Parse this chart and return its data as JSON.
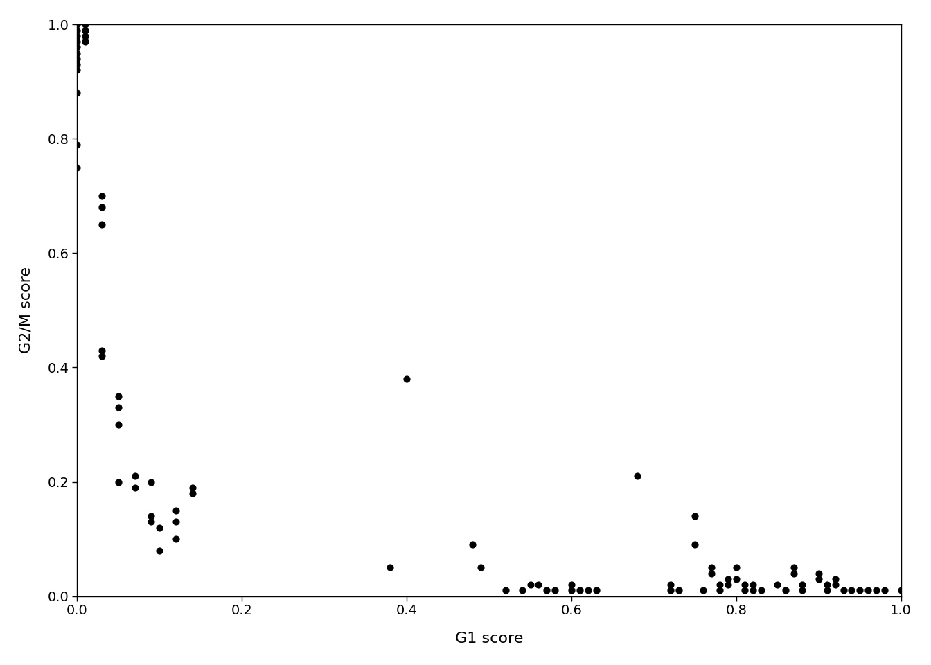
{
  "x": [
    0.0,
    0.0,
    0.0,
    0.0,
    0.0,
    0.0,
    0.0,
    0.0,
    0.0,
    0.0,
    0.0,
    0.0,
    0.01,
    0.01,
    0.01,
    0.01,
    0.03,
    0.03,
    0.03,
    0.03,
    0.03,
    0.05,
    0.05,
    0.05,
    0.05,
    0.07,
    0.07,
    0.09,
    0.09,
    0.09,
    0.1,
    0.1,
    0.12,
    0.12,
    0.12,
    0.14,
    0.14,
    0.38,
    0.4,
    0.48,
    0.49,
    0.52,
    0.54,
    0.55,
    0.56,
    0.57,
    0.58,
    0.6,
    0.6,
    0.61,
    0.62,
    0.63,
    0.68,
    0.72,
    0.72,
    0.73,
    0.75,
    0.75,
    0.76,
    0.77,
    0.77,
    0.78,
    0.78,
    0.79,
    0.79,
    0.8,
    0.8,
    0.81,
    0.81,
    0.82,
    0.82,
    0.83,
    0.85,
    0.86,
    0.87,
    0.87,
    0.88,
    0.88,
    0.9,
    0.9,
    0.91,
    0.91,
    0.92,
    0.92,
    0.93,
    0.94,
    0.95,
    0.96,
    0.97,
    0.98,
    1.0
  ],
  "y": [
    1.0,
    0.99,
    0.98,
    0.97,
    0.96,
    0.95,
    0.94,
    0.93,
    0.92,
    0.88,
    0.79,
    0.75,
    1.0,
    0.99,
    0.98,
    0.97,
    0.7,
    0.68,
    0.65,
    0.43,
    0.42,
    0.35,
    0.33,
    0.3,
    0.2,
    0.21,
    0.19,
    0.2,
    0.14,
    0.13,
    0.12,
    0.08,
    0.15,
    0.13,
    0.1,
    0.19,
    0.18,
    0.05,
    0.38,
    0.09,
    0.05,
    0.01,
    0.01,
    0.02,
    0.02,
    0.01,
    0.01,
    0.01,
    0.02,
    0.01,
    0.01,
    0.01,
    0.21,
    0.02,
    0.01,
    0.01,
    0.14,
    0.09,
    0.01,
    0.05,
    0.04,
    0.02,
    0.01,
    0.03,
    0.02,
    0.05,
    0.03,
    0.02,
    0.01,
    0.02,
    0.01,
    0.01,
    0.02,
    0.01,
    0.05,
    0.04,
    0.02,
    0.01,
    0.04,
    0.03,
    0.02,
    0.01,
    0.03,
    0.02,
    0.01,
    0.01,
    0.01,
    0.01,
    0.01,
    0.01,
    0.01
  ],
  "xlim": [
    0.0,
    1.0
  ],
  "ylim": [
    0.0,
    1.0
  ],
  "xlabel": "G1 score",
  "ylabel": "G2/M score",
  "xticks": [
    0.0,
    0.2,
    0.4,
    0.6,
    0.8,
    1.0
  ],
  "yticks": [
    0.0,
    0.2,
    0.4,
    0.6,
    0.8,
    1.0
  ],
  "point_color": "#000000",
  "point_size": 40,
  "background_color": "#ffffff",
  "label_fontsize": 16,
  "tick_fontsize": 14
}
